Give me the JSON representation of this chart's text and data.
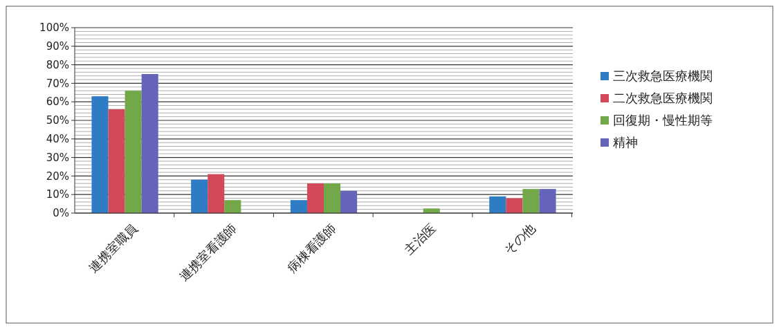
{
  "chart_data": {
    "type": "bar",
    "categories": [
      "連携室職員",
      "連携室看護師",
      "病棟看護師",
      "主治医",
      "その他"
    ],
    "series": [
      {
        "name": "三次救急医療機関",
        "color": "#2e7cc4",
        "values": [
          63,
          18,
          7,
          0,
          9
        ]
      },
      {
        "name": "二次救急医療機関",
        "color": "#d24a5a",
        "values": [
          56,
          21,
          16,
          0,
          8
        ]
      },
      {
        "name": "回復期・慢性期等",
        "color": "#72a84a",
        "values": [
          66,
          7,
          16,
          2.5,
          13
        ]
      },
      {
        "name": "精神",
        "color": "#6464b8",
        "values": [
          75,
          0,
          12,
          0,
          13
        ]
      }
    ],
    "ylim": [
      0,
      100
    ],
    "yticks": [
      {
        "value": 0,
        "label": "0%"
      },
      {
        "value": 2,
        "label": null
      },
      {
        "value": 4,
        "label": null
      },
      {
        "value": 6,
        "label": null
      },
      {
        "value": 8,
        "label": null
      },
      {
        "value": 10,
        "label": "10%"
      },
      {
        "value": 12,
        "label": null
      },
      {
        "value": 14,
        "label": null
      },
      {
        "value": 16,
        "label": null
      },
      {
        "value": 18,
        "label": null
      },
      {
        "value": 20,
        "label": "20%"
      },
      {
        "value": 22,
        "label": null
      },
      {
        "value": 24,
        "label": null
      },
      {
        "value": 26,
        "label": null
      },
      {
        "value": 28,
        "label": null
      },
      {
        "value": 30,
        "label": "30%"
      },
      {
        "value": 32,
        "label": null
      },
      {
        "value": 34,
        "label": null
      },
      {
        "value": 36,
        "label": null
      },
      {
        "value": 38,
        "label": null
      },
      {
        "value": 40,
        "label": "40%"
      },
      {
        "value": 42,
        "label": null
      },
      {
        "value": 44,
        "label": null
      },
      {
        "value": 46,
        "label": null
      },
      {
        "value": 48,
        "label": null
      },
      {
        "value": 50,
        "label": "50%"
      },
      {
        "value": 52,
        "label": null
      },
      {
        "value": 54,
        "label": null
      },
      {
        "value": 56,
        "label": null
      },
      {
        "value": 58,
        "label": null
      },
      {
        "value": 60,
        "label": "60%"
      },
      {
        "value": 62,
        "label": null
      },
      {
        "value": 64,
        "label": null
      },
      {
        "value": 66,
        "label": null
      },
      {
        "value": 68,
        "label": null
      },
      {
        "value": 70,
        "label": "70%"
      },
      {
        "value": 72,
        "label": null
      },
      {
        "value": 74,
        "label": null
      },
      {
        "value": 76,
        "label": null
      },
      {
        "value": 78,
        "label": null
      },
      {
        "value": 80,
        "label": "80%"
      },
      {
        "value": 82,
        "label": null
      },
      {
        "value": 84,
        "label": null
      },
      {
        "value": 86,
        "label": null
      },
      {
        "value": 88,
        "label": null
      },
      {
        "value": 90,
        "label": "90%"
      },
      {
        "value": 92,
        "label": null
      },
      {
        "value": 94,
        "label": null
      },
      {
        "value": 96,
        "label": null
      },
      {
        "value": 98,
        "label": null
      },
      {
        "value": 100,
        "label": "100%"
      }
    ],
    "grid": "y",
    "legend": "right"
  }
}
